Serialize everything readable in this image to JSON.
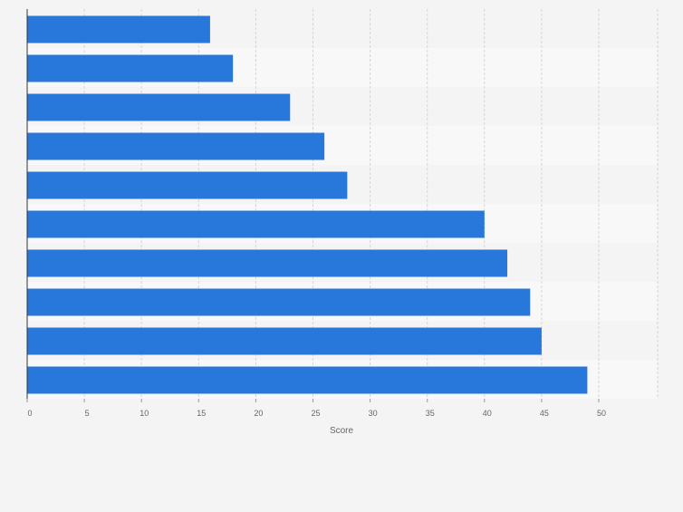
{
  "chart_data": {
    "type": "bar",
    "orientation": "horizontal",
    "categories": [
      "",
      "",
      "",
      "",
      "",
      "",
      "",
      "",
      "",
      ""
    ],
    "values": [
      16,
      18,
      23,
      26,
      28,
      40,
      42,
      44,
      45,
      49
    ],
    "xlabel": "Score",
    "ylabel": "",
    "xlim": [
      0,
      55
    ],
    "xticks": [
      0,
      5,
      10,
      15,
      20,
      25,
      30,
      35,
      40,
      45,
      50
    ],
    "grid": "vertical dashed",
    "bar_color": "#2878dc",
    "band_colors": [
      "#f4f4f5",
      "#f8f8f9"
    ],
    "axis_text_color": "#666666"
  }
}
